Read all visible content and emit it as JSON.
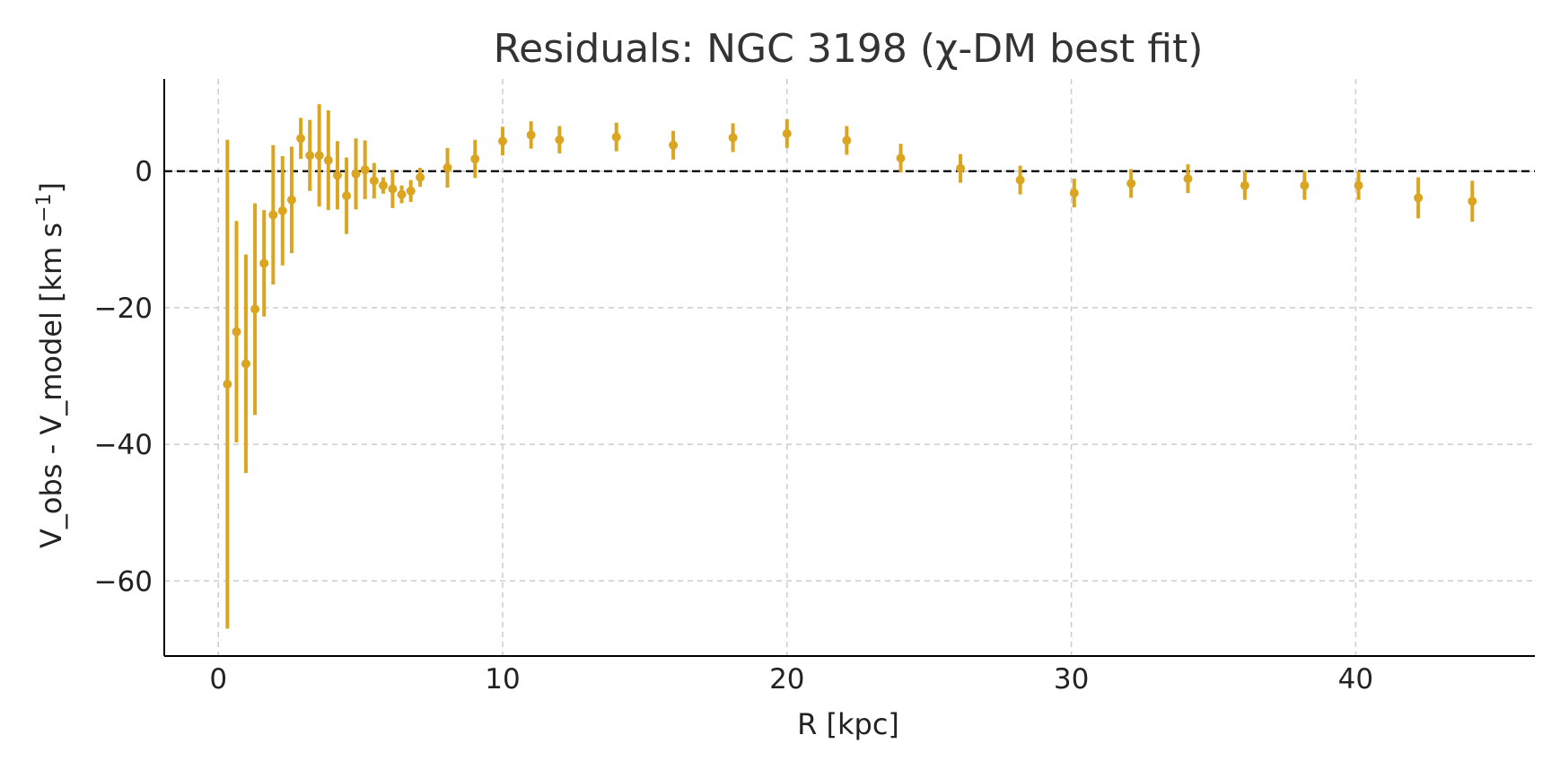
{
  "chart_data": {
    "type": "scatter",
    "title": "Residuals: NGC 3198 (χ-DM best fit)",
    "xlabel": "R [kpc]",
    "ylabel": "V_obs - V_model [km s",
    "ylabel_sup": "−1",
    "ylabel_end": "]",
    "xlim": [
      -1.9,
      46.3
    ],
    "ylim": [
      -71,
      13.5
    ],
    "x_ticks": [
      0,
      10,
      20,
      30,
      40
    ],
    "x_tick_labels": [
      "0",
      "10",
      "20",
      "30",
      "40"
    ],
    "y_ticks": [
      0,
      -20,
      -40,
      -60
    ],
    "y_tick_labels": [
      "0",
      "−20",
      "−40",
      "−60"
    ],
    "grid": true,
    "reference_line": 0,
    "colors": {
      "series": "#DAA520",
      "reference": "#000000",
      "grid": "#cccccc",
      "axis": "#000000"
    },
    "series": [
      {
        "x": [
          0.32,
          0.64,
          0.97,
          1.29,
          1.61,
          1.93,
          2.26,
          2.58,
          2.9,
          3.22,
          3.55,
          3.87,
          4.19,
          4.51,
          4.84,
          5.16,
          5.48,
          5.8,
          6.13,
          6.45,
          6.77,
          7.1,
          8.06,
          9.03,
          10.0,
          11.0,
          12.0,
          14.0,
          16.0,
          18.1,
          20.0,
          22.1,
          24.0,
          26.1,
          28.2,
          30.1,
          32.1,
          34.1,
          36.1,
          38.2,
          40.1,
          42.2,
          44.1
        ],
        "y": [
          -31.2,
          -23.5,
          -28.2,
          -20.2,
          -13.5,
          -6.4,
          -5.8,
          -4.2,
          4.8,
          2.3,
          2.3,
          1.6,
          -0.6,
          -3.6,
          -0.4,
          0.2,
          -1.4,
          -2.1,
          -2.6,
          -3.4,
          -2.9,
          -0.9,
          0.5,
          1.8,
          4.4,
          5.3,
          4.6,
          5.0,
          3.8,
          4.9,
          5.5,
          4.5,
          1.9,
          0.4,
          -1.3,
          -3.2,
          -1.8,
          -1.1,
          -2.1,
          -2.1,
          -2.1,
          -3.9,
          -4.4
        ],
        "err": [
          35.8,
          16.2,
          16.0,
          15.5,
          7.8,
          10.2,
          8.0,
          7.8,
          3.0,
          5.2,
          7.5,
          7.3,
          5.0,
          5.6,
          5.2,
          4.3,
          2.6,
          1.2,
          2.8,
          1.3,
          1.6,
          1.4,
          2.9,
          2.8,
          2.1,
          2.0,
          2.0,
          2.1,
          2.1,
          2.1,
          2.1,
          2.1,
          2.1,
          2.1,
          2.1,
          2.1,
          2.1,
          2.1,
          2.1,
          2.1,
          2.1,
          3.0,
          3.0
        ]
      }
    ]
  }
}
